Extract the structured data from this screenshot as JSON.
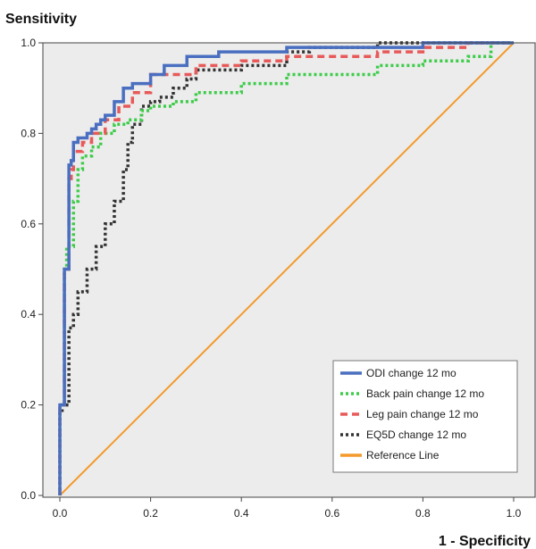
{
  "chart_data": {
    "type": "line",
    "title": "",
    "xlabel": "1 - Specificity",
    "ylabel": "Sensitivity",
    "xlim": [
      0,
      1
    ],
    "ylim": [
      0,
      1
    ],
    "xticks": [
      "0.0",
      "0.2",
      "0.4",
      "0.6",
      "0.8",
      "1.0"
    ],
    "yticks": [
      "0.0",
      "0.2",
      "0.4",
      "0.6",
      "0.8",
      "1.0"
    ],
    "grid": false,
    "legend_position": "bottom-right",
    "background": "#ececec",
    "series": [
      {
        "name": "ODI change 12 mo",
        "color": "#4a6fc0",
        "dash": "solid",
        "x": [
          0.0,
          0.01,
          0.02,
          0.025,
          0.03,
          0.04,
          0.05,
          0.06,
          0.07,
          0.08,
          0.09,
          0.1,
          0.12,
          0.14,
          0.16,
          0.2,
          0.23,
          0.28,
          0.35,
          0.5,
          0.6,
          0.8,
          0.98,
          1.0
        ],
        "y": [
          0.0,
          0.2,
          0.5,
          0.73,
          0.74,
          0.78,
          0.79,
          0.79,
          0.8,
          0.81,
          0.82,
          0.83,
          0.84,
          0.87,
          0.9,
          0.91,
          0.93,
          0.95,
          0.97,
          0.98,
          0.99,
          0.99,
          1.0,
          1.0
        ]
      },
      {
        "name": "Back pain change 12 mo",
        "color": "#3dcc4a",
        "dash": "dotted",
        "x": [
          0.0,
          0.01,
          0.015,
          0.03,
          0.04,
          0.05,
          0.07,
          0.09,
          0.12,
          0.15,
          0.18,
          0.2,
          0.25,
          0.3,
          0.4,
          0.5,
          0.6,
          0.7,
          0.8,
          0.9,
          0.95,
          1.0
        ],
        "y": [
          0.0,
          0.2,
          0.5,
          0.55,
          0.65,
          0.72,
          0.75,
          0.77,
          0.8,
          0.82,
          0.83,
          0.85,
          0.86,
          0.87,
          0.89,
          0.91,
          0.93,
          0.93,
          0.95,
          0.96,
          0.97,
          1.0
        ]
      },
      {
        "name": "Leg pain change 12 mo",
        "color": "#e85a5a",
        "dash": "dashed",
        "x": [
          0.0,
          0.01,
          0.02,
          0.025,
          0.03,
          0.05,
          0.07,
          0.1,
          0.13,
          0.16,
          0.2,
          0.3,
          0.4,
          0.5,
          0.6,
          0.7,
          0.8,
          0.9,
          1.0
        ],
        "y": [
          0.0,
          0.2,
          0.5,
          0.7,
          0.72,
          0.76,
          0.78,
          0.8,
          0.83,
          0.86,
          0.89,
          0.93,
          0.95,
          0.96,
          0.97,
          0.97,
          0.98,
          0.99,
          1.0
        ]
      },
      {
        "name": "EQ5D change 12 mo",
        "color": "#333333",
        "dash": "dotted",
        "x": [
          0.0,
          0.005,
          0.02,
          0.03,
          0.04,
          0.06,
          0.08,
          0.1,
          0.12,
          0.14,
          0.15,
          0.16,
          0.18,
          0.2,
          0.22,
          0.25,
          0.28,
          0.3,
          0.4,
          0.5,
          0.55,
          0.6,
          0.7,
          0.8,
          0.9,
          1.0
        ],
        "y": [
          0.0,
          0.18,
          0.2,
          0.37,
          0.4,
          0.45,
          0.5,
          0.55,
          0.6,
          0.65,
          0.72,
          0.78,
          0.82,
          0.86,
          0.87,
          0.88,
          0.9,
          0.92,
          0.94,
          0.95,
          0.98,
          0.99,
          0.99,
          1.0,
          1.0,
          1.0
        ]
      },
      {
        "name": "Reference Line",
        "color": "#f39a2b",
        "dash": "solid",
        "x": [
          0.0,
          1.0
        ],
        "y": [
          0.0,
          1.0
        ]
      }
    ]
  }
}
